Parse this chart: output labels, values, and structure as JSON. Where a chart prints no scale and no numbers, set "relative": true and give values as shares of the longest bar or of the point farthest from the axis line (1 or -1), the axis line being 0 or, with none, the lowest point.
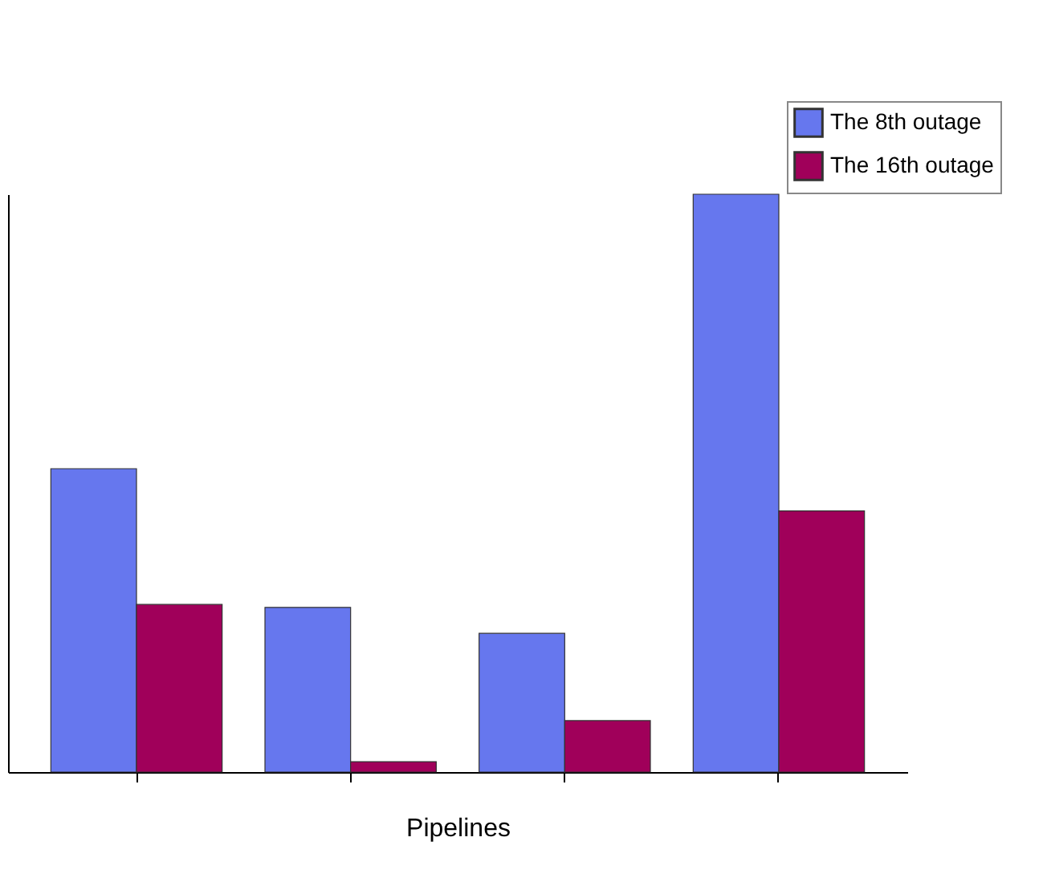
{
  "chart_data": {
    "type": "bar",
    "relative": true,
    "xlabel": "Pipelines",
    "categories": [
      null,
      null,
      null,
      null
    ],
    "series": [
      {
        "name": "The 8th outage",
        "color": "#6677ee",
        "values": [
          0.525,
          0.285,
          0.24,
          1.0
        ]
      },
      {
        "name": "The 16th outage",
        "color": "#a0005a",
        "values": [
          0.29,
          0.018,
          0.089,
          0.452
        ]
      }
    ],
    "legend": "top right",
    "grid": false
  }
}
